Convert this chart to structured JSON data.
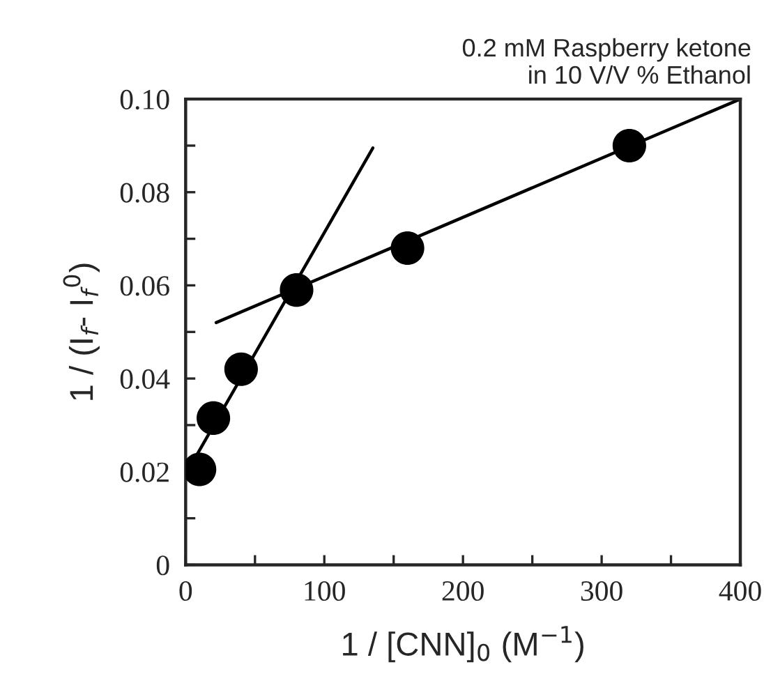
{
  "chart_data": {
    "type": "scatter",
    "title": "0.2 mM Raspberry ketone\nin 10 V/V % Ethanol",
    "xlabel": "1 / [CNN]$_{0}$ (M$^{−1}$)",
    "ylabel": "1 / (I$_{f}$- I$_{f}$$^{0}$)",
    "series": [
      {
        "color": "#000000",
        "marker": "circle",
        "x": [
          10,
          20,
          40,
          80,
          160,
          320
        ],
        "values": [
          0.0205,
          0.0315,
          0.042,
          0.059,
          0.068,
          0.09
        ]
      },
      {
        "type": "line",
        "color": "#000000",
        "marker": "none",
        "line_style": "solid",
        "x": [
          5,
          135
        ],
        "values": [
          0.022,
          0.0895
        ]
      },
      {
        "type": "line",
        "color": "#000000",
        "marker": "none",
        "line_style": "solid",
        "x": [
          22,
          400
        ],
        "values": [
          0.052,
          0.1
        ]
      }
    ],
    "xlim": [
      0,
      400
    ],
    "ylim": [
      0,
      0.1
    ],
    "xticks": [
      0,
      {
        "value": 50,
        "label": null
      },
      100,
      {
        "value": 150,
        "label": null
      },
      200,
      {
        "value": 250,
        "label": null
      },
      300,
      {
        "value": 350,
        "label": null
      },
      400
    ],
    "yticks": [
      {
        "value": 0,
        "label": "0"
      },
      {
        "value": 0.01,
        "label": null
      },
      {
        "value": 0.02,
        "label": "0.02"
      },
      {
        "value": 0.03,
        "label": null
      },
      {
        "value": 0.04,
        "label": "0.04"
      },
      {
        "value": 0.05,
        "label": null
      },
      {
        "value": 0.06,
        "label": "0.06"
      },
      {
        "value": 0.07,
        "label": null
      },
      {
        "value": 0.08,
        "label": "0.08"
      },
      {
        "value": 0.09,
        "label": null
      },
      {
        "value": 0.1,
        "label": "0.10"
      }
    ],
    "grid": false,
    "legend": false
  }
}
